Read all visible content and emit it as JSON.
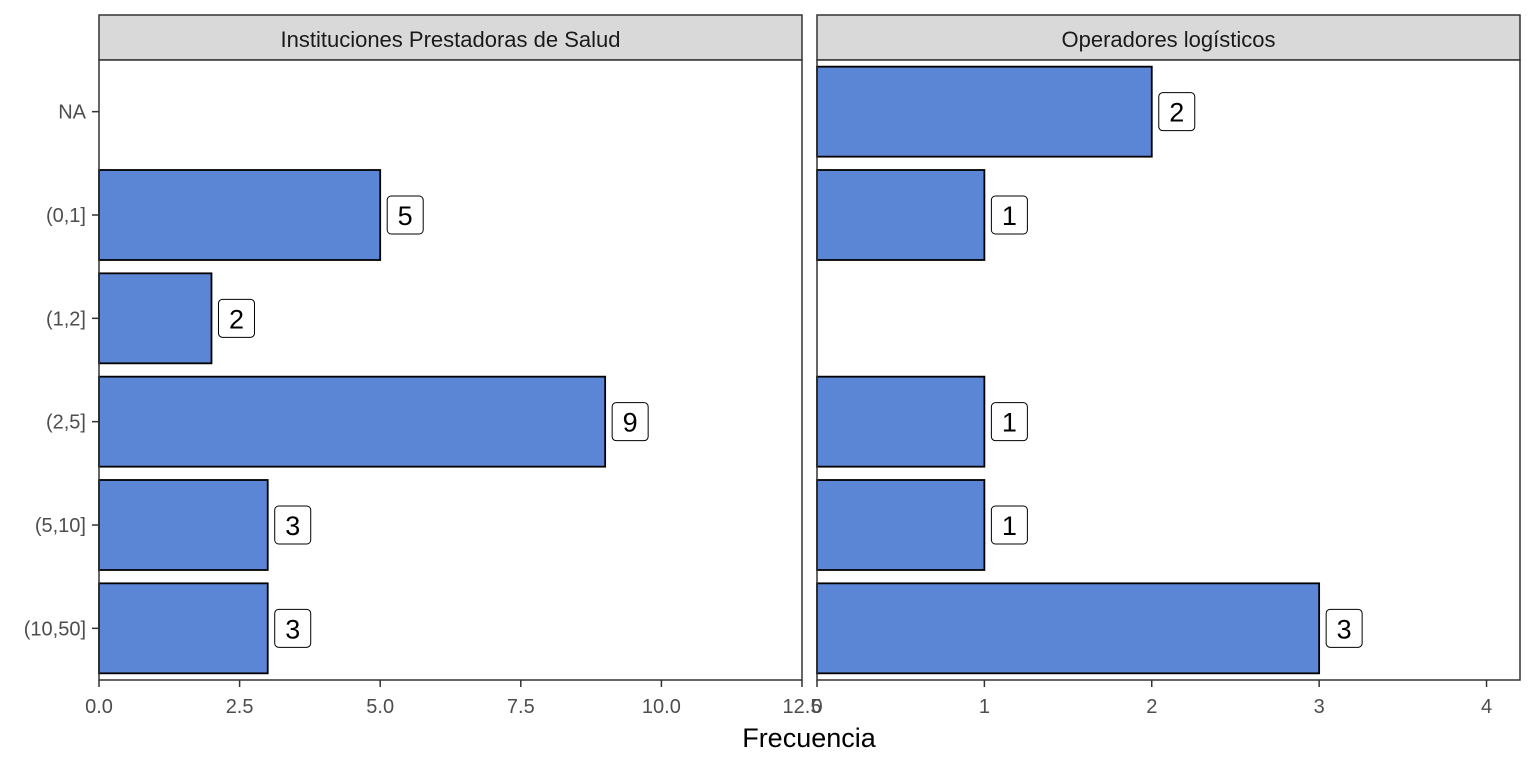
{
  "chart_data": {
    "type": "bar",
    "orientation": "horizontal",
    "categories": [
      "NA",
      "(0,1]",
      "(1,2]",
      "(2,5]",
      "(5,10]",
      "(10,50]"
    ],
    "xlabel": "Frecuencia",
    "ylabel": "",
    "grid": false,
    "legend": "none",
    "bar_color": "#5b86d6",
    "bar_border_color": "#000000",
    "facets": [
      {
        "title": "Instituciones Prestadoras de Salud",
        "values": [
          null,
          5,
          2,
          9,
          3,
          3
        ],
        "xlim": [
          0,
          12.5
        ],
        "xticks": [
          0,
          2.5,
          5,
          7.5,
          10,
          12.5
        ],
        "xtick_labels": [
          "0.0",
          "2.5",
          "5.0",
          "7.5",
          "10.0",
          "12.5"
        ]
      },
      {
        "title": "Operadores logísticos",
        "values": [
          2,
          1,
          null,
          1,
          1,
          3
        ],
        "xlim": [
          0,
          4.2
        ],
        "xticks": [
          0,
          1,
          2,
          3,
          4
        ],
        "xtick_labels": [
          "0",
          "1",
          "2",
          "3",
          "4"
        ]
      }
    ]
  }
}
